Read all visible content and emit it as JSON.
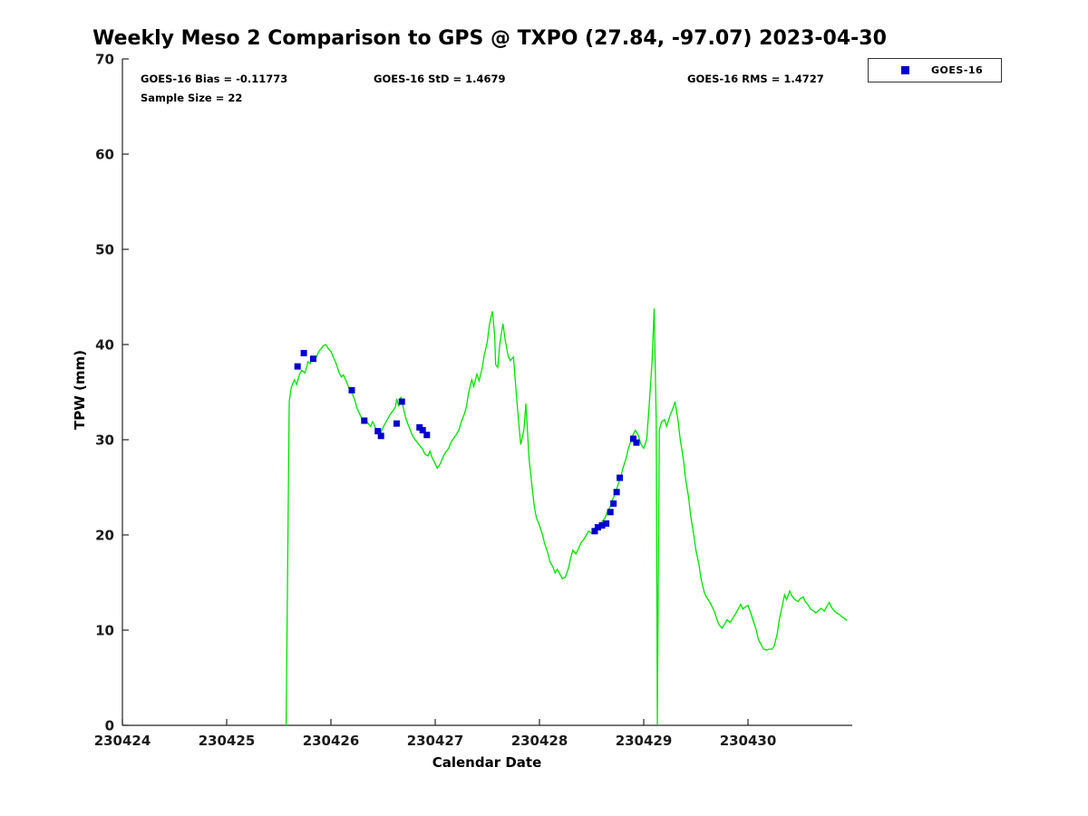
{
  "title": "Weekly Meso 2 Comparison to GPS @ TXPO (27.84, -97.07) 2023-04-30",
  "annotations": {
    "bias": "GOES-16 Bias = -0.11773",
    "std": "GOES-16 StD = 1.4679",
    "rms": "GOES-16 RMS = 1.4727",
    "sample_size": "Sample Size = 22"
  },
  "legend": {
    "items": [
      {
        "label": "GOES-16",
        "marker": "square",
        "color": "#0000cc"
      }
    ]
  },
  "colors": {
    "axis": "#262626",
    "tick_label": "#1a1a1a",
    "background": "#ffffff",
    "line_green": "#00e400",
    "marker_blue": "#0000cc"
  },
  "chart_data": {
    "type": "line+scatter",
    "title": "Weekly Meso 2 Comparison to GPS @ TXPO (27.84, -97.07) 2023-04-30",
    "xlabel": "Calendar Date",
    "ylabel": "TPW (mm)",
    "xlim": [
      230424,
      230431
    ],
    "ylim": [
      0,
      70
    ],
    "xticks": [
      230424,
      230425,
      230426,
      230427,
      230428,
      230429,
      230430
    ],
    "yticks": [
      0,
      10,
      20,
      30,
      40,
      50,
      60,
      70
    ],
    "grid": false,
    "legend_position": "top-right-outside",
    "series": [
      {
        "name": "GPS",
        "type": "line",
        "color": "#00e400",
        "points": [
          [
            230425.57,
            0.0
          ],
          [
            230425.6,
            34.0
          ],
          [
            230425.62,
            35.5
          ],
          [
            230425.65,
            36.3
          ],
          [
            230425.67,
            35.8
          ],
          [
            230425.7,
            36.9
          ],
          [
            230425.72,
            37.3
          ],
          [
            230425.75,
            37.0
          ],
          [
            230425.78,
            38.2
          ],
          [
            230425.8,
            38.0
          ],
          [
            230425.82,
            38.6
          ],
          [
            230425.85,
            38.4
          ],
          [
            230425.88,
            39.2
          ],
          [
            230425.9,
            39.5
          ],
          [
            230425.93,
            39.9
          ],
          [
            230425.95,
            40.0
          ],
          [
            230425.98,
            39.5
          ],
          [
            230426.0,
            39.3
          ],
          [
            230426.03,
            38.5
          ],
          [
            230426.05,
            38.0
          ],
          [
            230426.08,
            37.0
          ],
          [
            230426.1,
            36.6
          ],
          [
            230426.12,
            36.8
          ],
          [
            230426.15,
            36.1
          ],
          [
            230426.18,
            35.2
          ],
          [
            230426.2,
            35.0
          ],
          [
            230426.23,
            34.1
          ],
          [
            230426.25,
            33.3
          ],
          [
            230426.28,
            32.6
          ],
          [
            230426.3,
            32.1
          ],
          [
            230426.33,
            32.3
          ],
          [
            230426.35,
            31.8
          ],
          [
            230426.38,
            31.4
          ],
          [
            230426.4,
            31.9
          ],
          [
            230426.43,
            31.2
          ],
          [
            230426.45,
            31.0
          ],
          [
            230426.48,
            30.8
          ],
          [
            230426.5,
            31.3
          ],
          [
            230426.53,
            31.9
          ],
          [
            230426.55,
            32.3
          ],
          [
            230426.57,
            32.7
          ],
          [
            230426.6,
            33.1
          ],
          [
            230426.62,
            33.5
          ],
          [
            230426.63,
            34.3
          ],
          [
            230426.65,
            33.5
          ],
          [
            230426.67,
            34.5
          ],
          [
            230426.7,
            33.1
          ],
          [
            230426.72,
            32.2
          ],
          [
            230426.75,
            31.3
          ],
          [
            230426.78,
            30.5
          ],
          [
            230426.8,
            30.1
          ],
          [
            230426.83,
            29.7
          ],
          [
            230426.85,
            29.4
          ],
          [
            230426.88,
            29.0
          ],
          [
            230426.9,
            28.5
          ],
          [
            230426.93,
            28.3
          ],
          [
            230426.95,
            28.8
          ],
          [
            230426.97,
            28.1
          ],
          [
            230427.0,
            27.5
          ],
          [
            230427.02,
            27.0
          ],
          [
            230427.05,
            27.5
          ],
          [
            230427.08,
            28.3
          ],
          [
            230427.1,
            28.7
          ],
          [
            230427.13,
            29.1
          ],
          [
            230427.15,
            29.7
          ],
          [
            230427.18,
            30.2
          ],
          [
            230427.2,
            30.5
          ],
          [
            230427.23,
            31.1
          ],
          [
            230427.25,
            31.9
          ],
          [
            230427.28,
            32.7
          ],
          [
            230427.3,
            33.5
          ],
          [
            230427.32,
            34.9
          ],
          [
            230427.35,
            36.3
          ],
          [
            230427.37,
            35.6
          ],
          [
            230427.4,
            36.9
          ],
          [
            230427.42,
            36.2
          ],
          [
            230427.45,
            37.5
          ],
          [
            230427.47,
            38.9
          ],
          [
            230427.5,
            40.3
          ],
          [
            230427.52,
            42.1
          ],
          [
            230427.55,
            43.5
          ],
          [
            230427.57,
            40.9
          ],
          [
            230427.58,
            37.9
          ],
          [
            230427.6,
            37.6
          ],
          [
            230427.62,
            40.1
          ],
          [
            230427.65,
            42.2
          ],
          [
            230427.67,
            40.5
          ],
          [
            230427.7,
            38.8
          ],
          [
            230427.72,
            38.3
          ],
          [
            230427.75,
            38.7
          ],
          [
            230427.77,
            36.0
          ],
          [
            230427.8,
            31.9
          ],
          [
            230427.82,
            29.5
          ],
          [
            230427.85,
            31.0
          ],
          [
            230427.87,
            33.8
          ],
          [
            230427.88,
            31.9
          ],
          [
            230427.9,
            28.0
          ],
          [
            230427.93,
            25.0
          ],
          [
            230427.95,
            23.0
          ],
          [
            230427.97,
            21.8
          ],
          [
            230428.0,
            21.0
          ],
          [
            230428.03,
            20.0
          ],
          [
            230428.05,
            19.1
          ],
          [
            230428.08,
            18.1
          ],
          [
            230428.1,
            17.2
          ],
          [
            230428.13,
            16.6
          ],
          [
            230428.15,
            16.0
          ],
          [
            230428.17,
            16.4
          ],
          [
            230428.2,
            15.8
          ],
          [
            230428.22,
            15.4
          ],
          [
            230428.25,
            15.6
          ],
          [
            230428.28,
            16.6
          ],
          [
            230428.3,
            17.6
          ],
          [
            230428.32,
            18.4
          ],
          [
            230428.35,
            18.0
          ],
          [
            230428.38,
            18.7
          ],
          [
            230428.4,
            19.2
          ],
          [
            230428.43,
            19.6
          ],
          [
            230428.45,
            20.0
          ],
          [
            230428.47,
            20.4
          ],
          [
            230428.5,
            20.2
          ],
          [
            230428.53,
            20.6
          ],
          [
            230428.55,
            20.9
          ],
          [
            230428.58,
            21.1
          ],
          [
            230428.6,
            21.4
          ],
          [
            230428.63,
            21.8
          ],
          [
            230428.65,
            22.4
          ],
          [
            230428.68,
            23.0
          ],
          [
            230428.7,
            23.7
          ],
          [
            230428.73,
            24.4
          ],
          [
            230428.75,
            25.2
          ],
          [
            230428.78,
            26.1
          ],
          [
            230428.8,
            27.0
          ],
          [
            230428.83,
            28.0
          ],
          [
            230428.85,
            29.0
          ],
          [
            230428.88,
            30.0
          ],
          [
            230428.9,
            30.6
          ],
          [
            230428.92,
            31.0
          ],
          [
            230428.95,
            30.4
          ],
          [
            230428.97,
            29.6
          ],
          [
            230429.0,
            29.1
          ],
          [
            230429.03,
            30.1
          ],
          [
            230429.05,
            33.2
          ],
          [
            230429.08,
            38.2
          ],
          [
            230429.1,
            43.8
          ],
          [
            230429.12,
            31.8
          ],
          [
            230429.13,
            0.1
          ],
          [
            230429.15,
            31.0
          ],
          [
            230429.17,
            31.9
          ],
          [
            230429.2,
            32.1
          ],
          [
            230429.22,
            31.4
          ],
          [
            230429.25,
            32.5
          ],
          [
            230429.28,
            33.3
          ],
          [
            230429.3,
            34.0
          ],
          [
            230429.33,
            32.0
          ],
          [
            230429.35,
            30.0
          ],
          [
            230429.38,
            28.0
          ],
          [
            230429.4,
            26.0
          ],
          [
            230429.43,
            24.0
          ],
          [
            230429.45,
            22.0
          ],
          [
            230429.48,
            20.0
          ],
          [
            230429.5,
            18.4
          ],
          [
            230429.53,
            16.9
          ],
          [
            230429.55,
            15.4
          ],
          [
            230429.58,
            14.0
          ],
          [
            230429.6,
            13.5
          ],
          [
            230429.63,
            13.0
          ],
          [
            230429.65,
            12.6
          ],
          [
            230429.68,
            11.9
          ],
          [
            230429.7,
            11.2
          ],
          [
            230429.72,
            10.6
          ],
          [
            230429.75,
            10.2
          ],
          [
            230429.78,
            10.7
          ],
          [
            230429.8,
            11.1
          ],
          [
            230429.83,
            10.8
          ],
          [
            230429.85,
            11.2
          ],
          [
            230429.88,
            11.7
          ],
          [
            230429.9,
            12.1
          ],
          [
            230429.93,
            12.7
          ],
          [
            230429.95,
            12.2
          ],
          [
            230429.97,
            12.4
          ],
          [
            230430.0,
            12.6
          ],
          [
            230430.03,
            11.7
          ],
          [
            230430.05,
            11.0
          ],
          [
            230430.08,
            10.0
          ],
          [
            230430.1,
            9.0
          ],
          [
            230430.13,
            8.4
          ],
          [
            230430.15,
            8.0
          ],
          [
            230430.18,
            7.9
          ],
          [
            230430.2,
            8.0
          ],
          [
            230430.23,
            8.0
          ],
          [
            230430.25,
            8.3
          ],
          [
            230430.28,
            9.6
          ],
          [
            230430.3,
            11.1
          ],
          [
            230430.33,
            12.6
          ],
          [
            230430.35,
            13.7
          ],
          [
            230430.37,
            13.2
          ],
          [
            230430.4,
            14.1
          ],
          [
            230430.42,
            13.6
          ],
          [
            230430.45,
            13.2
          ],
          [
            230430.48,
            13.0
          ],
          [
            230430.5,
            13.3
          ],
          [
            230430.53,
            13.5
          ],
          [
            230430.55,
            13.0
          ],
          [
            230430.58,
            12.6
          ],
          [
            230430.6,
            12.2
          ],
          [
            230430.63,
            12.0
          ],
          [
            230430.65,
            11.8
          ],
          [
            230430.68,
            12.1
          ],
          [
            230430.7,
            12.3
          ],
          [
            230430.73,
            12.0
          ],
          [
            230430.75,
            12.4
          ],
          [
            230430.78,
            12.9
          ],
          [
            230430.8,
            12.4
          ],
          [
            230430.83,
            12.0
          ],
          [
            230430.85,
            11.8
          ],
          [
            230430.88,
            11.6
          ],
          [
            230430.9,
            11.4
          ],
          [
            230430.93,
            11.2
          ],
          [
            230430.95,
            11.0
          ]
        ]
      },
      {
        "name": "GOES-16",
        "type": "scatter",
        "marker": "square",
        "color": "#0000cc",
        "points": [
          [
            230425.68,
            37.7
          ],
          [
            230425.74,
            39.1
          ],
          [
            230425.83,
            38.5
          ],
          [
            230426.2,
            35.2
          ],
          [
            230426.32,
            32.0
          ],
          [
            230426.45,
            30.9
          ],
          [
            230426.48,
            30.4
          ],
          [
            230426.63,
            31.7
          ],
          [
            230426.68,
            34.0
          ],
          [
            230426.85,
            31.3
          ],
          [
            230426.88,
            31.0
          ],
          [
            230426.92,
            30.5
          ],
          [
            230428.53,
            20.4
          ],
          [
            230428.56,
            20.8
          ],
          [
            230428.6,
            21.0
          ],
          [
            230428.64,
            21.2
          ],
          [
            230428.68,
            22.4
          ],
          [
            230428.71,
            23.3
          ],
          [
            230428.74,
            24.5
          ],
          [
            230428.77,
            26.0
          ],
          [
            230428.9,
            30.1
          ],
          [
            230428.93,
            29.7
          ]
        ]
      }
    ]
  }
}
